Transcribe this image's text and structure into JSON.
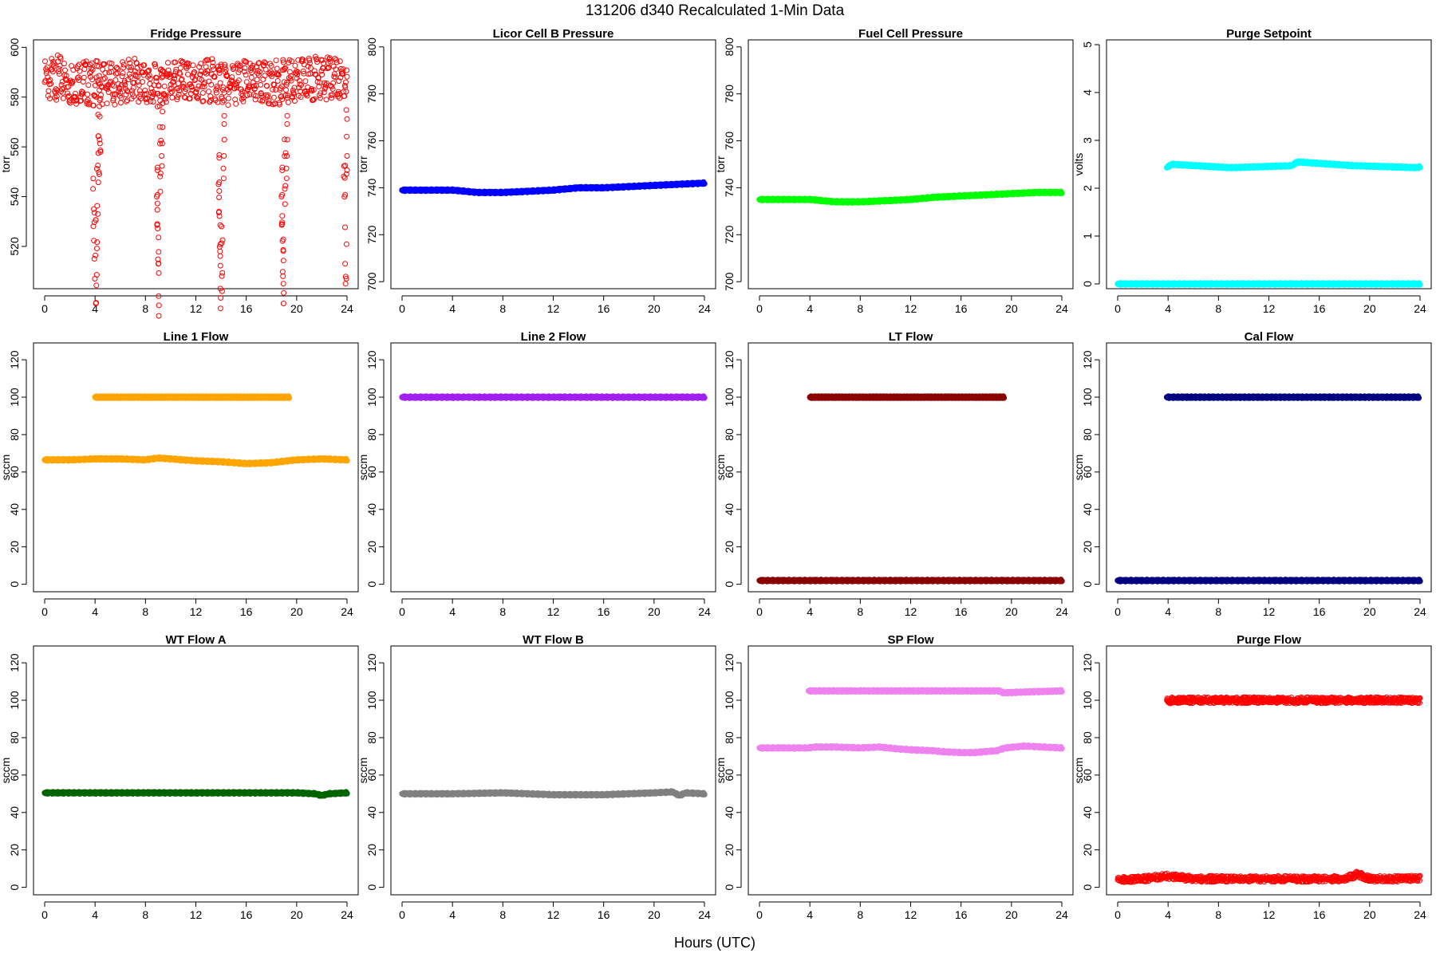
{
  "figure": {
    "title": "131206   d340   Recalculated 1-Min Data",
    "xlabel": "Hours (UTC)"
  },
  "chart_data": [
    {
      "type": "scatter",
      "title": "Fridge Pressure",
      "ylabel": "torr",
      "color": "#ff0000",
      "marker": "open-circle",
      "xlim": [
        0,
        24
      ],
      "xticks": [
        0,
        4,
        8,
        12,
        16,
        20,
        24
      ],
      "ylim": [
        503,
        603
      ],
      "yticks": [
        520,
        540,
        560,
        580,
        600
      ],
      "series": [
        {
          "x": [
            0,
            1,
            2,
            3,
            3.6,
            4.5,
            6,
            7,
            8.5,
            9.5,
            11,
            12,
            13,
            14.2,
            15,
            16,
            17,
            18.5,
            19.5,
            20.5,
            22,
            23,
            24
          ],
          "y": [
            586,
            588,
            585,
            587,
            585,
            586,
            585,
            587,
            584,
            586,
            586,
            585,
            587,
            585,
            586,
            586,
            585,
            586,
            586,
            587,
            588,
            587,
            586
          ]
        },
        {
          "x": [
            3.9,
            4.0,
            4.1,
            4.2,
            4.3,
            4.4
          ],
          "y": [
            535,
            520,
            510,
            545,
            560,
            570
          ]
        },
        {
          "x": [
            8.9,
            9.0,
            9.1,
            9.2,
            9.3
          ],
          "y": [
            540,
            525,
            505,
            555,
            565
          ]
        },
        {
          "x": [
            13.8,
            13.9,
            14.0,
            14.1,
            14.2
          ],
          "y": [
            545,
            530,
            508,
            515,
            560
          ]
        },
        {
          "x": [
            18.8,
            18.9,
            19.0,
            19.1,
            19.2
          ],
          "y": [
            540,
            520,
            510,
            550,
            560
          ]
        },
        {
          "x": [
            23.8,
            23.9,
            24.0
          ],
          "y": [
            540,
            518,
            562
          ]
        }
      ]
    },
    {
      "type": "scatter",
      "title": "Licor Cell B Pressure",
      "ylabel": "torr",
      "color": "#0000ff",
      "xlim": [
        0,
        24
      ],
      "xticks": [
        0,
        4,
        8,
        12,
        16,
        20,
        24
      ],
      "ylim": [
        697,
        803
      ],
      "yticks": [
        700,
        720,
        740,
        760,
        780,
        800
      ],
      "series": [
        {
          "x": [
            0,
            2,
            4,
            6,
            8,
            10,
            12,
            14,
            16,
            18,
            20,
            22,
            24
          ],
          "y": [
            739,
            739,
            739,
            738,
            738,
            738.5,
            739,
            740,
            740,
            740.5,
            741,
            741.5,
            742
          ]
        }
      ]
    },
    {
      "type": "scatter",
      "title": "Fuel Cell Pressure",
      "ylabel": "torr",
      "color": "#00ff00",
      "xlim": [
        0,
        24
      ],
      "xticks": [
        0,
        4,
        8,
        12,
        16,
        20,
        24
      ],
      "ylim": [
        697,
        803
      ],
      "yticks": [
        700,
        720,
        740,
        760,
        780,
        800
      ],
      "series": [
        {
          "x": [
            0,
            2,
            4,
            6,
            8,
            10,
            12,
            14,
            16,
            18,
            20,
            22,
            24
          ],
          "y": [
            735,
            735,
            735,
            734,
            734,
            734.5,
            735,
            736,
            736.5,
            737,
            737.5,
            738,
            738
          ]
        }
      ]
    },
    {
      "type": "scatter",
      "title": "Purge Setpoint",
      "ylabel": "volts",
      "color": "#00ffff",
      "xlim": [
        0,
        24
      ],
      "xticks": [
        0,
        4,
        8,
        12,
        16,
        20,
        24
      ],
      "ylim": [
        -0.1,
        5.1
      ],
      "yticks": [
        0,
        1,
        2,
        3,
        4,
        5
      ],
      "series": [
        {
          "x": [
            0,
            24
          ],
          "y": [
            0,
            0
          ]
        },
        {
          "x": [
            3.9,
            4.1,
            4.3,
            8.9,
            9.1,
            13.8,
            14.0,
            14.2,
            18.8,
            19.0,
            23.8,
            24.0
          ],
          "y": [
            2.43,
            2.47,
            2.5,
            2.43,
            2.43,
            2.47,
            2.5,
            2.55,
            2.47,
            2.47,
            2.43,
            2.45
          ]
        }
      ]
    },
    {
      "type": "scatter",
      "title": "Line 1 Flow",
      "ylabel": "sccm",
      "color": "#ffa500",
      "xlim": [
        0,
        24
      ],
      "xticks": [
        0,
        4,
        8,
        12,
        16,
        20,
        24
      ],
      "ylim": [
        -4,
        129
      ],
      "yticks": [
        0,
        20,
        40,
        60,
        80,
        100,
        120
      ],
      "series": [
        {
          "x": [
            0,
            2,
            4,
            6,
            8,
            9,
            10,
            12,
            14,
            16,
            18,
            20,
            22,
            24
          ],
          "y": [
            66.5,
            66.5,
            67,
            67,
            66.5,
            67.5,
            67,
            66,
            65.5,
            64.5,
            65,
            66.5,
            67,
            66.5
          ]
        },
        {
          "x": [
            4.0,
            4.2,
            4.4,
            19.0,
            19.2,
            19.4
          ],
          "y": [
            100,
            100,
            100,
            100,
            100,
            100
          ]
        }
      ]
    },
    {
      "type": "scatter",
      "title": "Line 2 Flow",
      "ylabel": "sccm",
      "color": "#a020f0",
      "xlim": [
        0,
        24
      ],
      "xticks": [
        0,
        4,
        8,
        12,
        16,
        20,
        24
      ],
      "ylim": [
        -4,
        129
      ],
      "yticks": [
        0,
        20,
        40,
        60,
        80,
        100,
        120
      ],
      "series": [
        {
          "x": [
            0,
            24
          ],
          "y": [
            100,
            100
          ]
        }
      ]
    },
    {
      "type": "scatter",
      "title": "LT Flow",
      "ylabel": "sccm",
      "color": "#8b0000",
      "xlim": [
        0,
        24
      ],
      "xticks": [
        0,
        4,
        8,
        12,
        16,
        20,
        24
      ],
      "ylim": [
        -4,
        129
      ],
      "yticks": [
        0,
        20,
        40,
        60,
        80,
        100,
        120
      ],
      "series": [
        {
          "x": [
            0,
            24
          ],
          "y": [
            2,
            2
          ]
        },
        {
          "x": [
            4.0,
            4.2,
            4.4,
            19.0,
            19.2,
            19.4
          ],
          "y": [
            100,
            100,
            100,
            100,
            100,
            100
          ]
        }
      ]
    },
    {
      "type": "scatter",
      "title": "Cal Flow",
      "ylabel": "sccm",
      "color": "#000080",
      "xlim": [
        0,
        24
      ],
      "xticks": [
        0,
        4,
        8,
        12,
        16,
        20,
        24
      ],
      "ylim": [
        -4,
        129
      ],
      "yticks": [
        0,
        20,
        40,
        60,
        80,
        100,
        120
      ],
      "series": [
        {
          "x": [
            0,
            24
          ],
          "y": [
            2,
            2
          ]
        },
        {
          "x": [
            3.9,
            4.1,
            4.4,
            8.9,
            9.1,
            13.8,
            14.0,
            14.2,
            18.8,
            19.0,
            23.9
          ],
          "y": [
            100,
            100,
            100,
            100,
            100,
            100,
            100,
            100,
            100,
            100,
            100
          ]
        }
      ]
    },
    {
      "type": "scatter",
      "title": "WT Flow A",
      "ylabel": "sccm",
      "color": "#006400",
      "xlim": [
        0,
        24
      ],
      "xticks": [
        0,
        4,
        8,
        12,
        16,
        20,
        24
      ],
      "ylim": [
        -4,
        129
      ],
      "yticks": [
        0,
        20,
        40,
        60,
        80,
        100,
        120
      ],
      "series": [
        {
          "x": [
            0,
            4,
            8,
            12,
            16,
            20,
            21.5,
            22,
            22.5,
            24
          ],
          "y": [
            50.5,
            50.5,
            50.5,
            50.5,
            50.5,
            50.5,
            50,
            49,
            50,
            50.5
          ]
        }
      ]
    },
    {
      "type": "scatter",
      "title": "WT Flow B",
      "ylabel": "sccm",
      "color": "#808080",
      "xlim": [
        0,
        24
      ],
      "xticks": [
        0,
        4,
        8,
        12,
        16,
        20,
        24
      ],
      "ylim": [
        -4,
        129
      ],
      "yticks": [
        0,
        20,
        40,
        60,
        80,
        100,
        120
      ],
      "series": [
        {
          "x": [
            0,
            4,
            8,
            10,
            12,
            14,
            16,
            18,
            20,
            21.5,
            22,
            22.5,
            24
          ],
          "y": [
            50,
            50,
            50.5,
            50,
            49.5,
            49.5,
            49.5,
            50,
            50.5,
            51,
            49,
            50.5,
            50
          ]
        }
      ]
    },
    {
      "type": "scatter",
      "title": "SP Flow",
      "ylabel": "sccm",
      "color": "#ee82ee",
      "xlim": [
        0,
        24
      ],
      "xticks": [
        0,
        4,
        8,
        12,
        16,
        20,
        24
      ],
      "ylim": [
        -4,
        129
      ],
      "yticks": [
        0,
        20,
        40,
        60,
        80,
        100,
        120
      ],
      "series": [
        {
          "x": [
            0,
            2,
            3.8,
            4.5,
            6,
            8,
            9.5,
            11,
            12,
            13.8,
            14.5,
            16,
            17,
            18.8,
            19.5,
            21,
            22.5,
            24
          ],
          "y": [
            74.5,
            74.5,
            74.5,
            75,
            75,
            74.5,
            75,
            74,
            73.5,
            73,
            72.5,
            72,
            72,
            73,
            74.5,
            75.5,
            75,
            74.5
          ]
        },
        {
          "x": [
            3.9,
            4.2,
            4.5,
            9.0,
            9.2,
            13.9,
            14.2,
            18.9,
            19.1,
            19.3,
            24.0
          ],
          "y": [
            105,
            105,
            105,
            105,
            105,
            105,
            105,
            105,
            105,
            104,
            105
          ]
        }
      ]
    },
    {
      "type": "scatter",
      "title": "Purge Flow",
      "ylabel": "sccm",
      "color": "#ff0000",
      "marker": "open-circle",
      "xlim": [
        0,
        24
      ],
      "xticks": [
        0,
        4,
        8,
        12,
        16,
        20,
        24
      ],
      "ylim": [
        -4,
        129
      ],
      "yticks": [
        0,
        20,
        40,
        60,
        80,
        100,
        120
      ],
      "series": [
        {
          "x": [
            0,
            2,
            4,
            6,
            8,
            10,
            12,
            14,
            16,
            18,
            19,
            20,
            22,
            24
          ],
          "y": [
            4,
            4.5,
            6,
            4.5,
            4.5,
            4.5,
            4.5,
            4.5,
            4.5,
            4.5,
            7,
            4.5,
            4.5,
            5
          ]
        },
        {
          "x": [
            3.9,
            4.1,
            4.3,
            8.9,
            9.1,
            13.8,
            14.0,
            14.2,
            18.9,
            19.1,
            23.9,
            24.0
          ],
          "y": [
            100,
            99,
            100,
            100,
            100,
            100,
            99,
            100,
            100,
            100,
            100,
            100
          ]
        }
      ]
    }
  ]
}
